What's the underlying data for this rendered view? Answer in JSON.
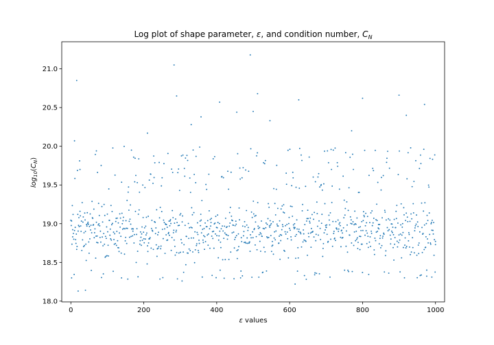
{
  "chart_data": {
    "type": "scatter",
    "title": "Log plot of shape parameter, ε, and condition number, C_N",
    "title_parts": {
      "prefix": "Log plot of shape parameter, ",
      "epsilon": "ε",
      "middle": ", and condition number, ",
      "cn_main": "C",
      "cn_sub": "N"
    },
    "xlabel": "ε values",
    "xlabel_parts": {
      "symbol": "ε",
      "rest": " values"
    },
    "ylabel": "log10(C_N)",
    "ylabel_parts": {
      "log": "log",
      "log_sub": "10",
      "open": "(",
      "cn_main": "C",
      "cn_sub": "N",
      "close": ")"
    },
    "xlim": [
      -25,
      1025
    ],
    "ylim": [
      17.99,
      21.35
    ],
    "xticks": [
      0,
      200,
      400,
      600,
      800,
      1000
    ],
    "xtick_labels": [
      "0",
      "200",
      "400",
      "600",
      "800",
      "1000"
    ],
    "yticks": [
      18.0,
      18.5,
      19.0,
      19.5,
      20.0,
      20.5,
      21.0
    ],
    "ytick_labels": [
      "18.0",
      "18.5",
      "19.0",
      "19.5",
      "20.0",
      "20.5",
      "21.0"
    ],
    "grid": false,
    "legend": "none",
    "marker_color": "#1f77b4",
    "notable_points": [
      {
        "x": 2,
        "y": 18.3
      },
      {
        "x": 5,
        "y": 18.83
      },
      {
        "x": 10,
        "y": 20.07
      },
      {
        "x": 16,
        "y": 20.85
      },
      {
        "x": 20,
        "y": 18.13
      },
      {
        "x": 25,
        "y": 19.7
      },
      {
        "x": 40,
        "y": 18.14
      },
      {
        "x": 70,
        "y": 19.94
      },
      {
        "x": 139,
        "y": 18.3
      },
      {
        "x": 210,
        "y": 20.17
      },
      {
        "x": 283,
        "y": 21.05
      },
      {
        "x": 290,
        "y": 20.65
      },
      {
        "x": 305,
        "y": 18.26
      },
      {
        "x": 330,
        "y": 20.28
      },
      {
        "x": 357,
        "y": 20.38
      },
      {
        "x": 408,
        "y": 20.57
      },
      {
        "x": 455,
        "y": 20.44
      },
      {
        "x": 492,
        "y": 21.18
      },
      {
        "x": 500,
        "y": 20.45
      },
      {
        "x": 512,
        "y": 20.68
      },
      {
        "x": 546,
        "y": 20.33
      },
      {
        "x": 615,
        "y": 18.22
      },
      {
        "x": 625,
        "y": 20.6
      },
      {
        "x": 770,
        "y": 20.2
      },
      {
        "x": 800,
        "y": 20.62
      },
      {
        "x": 900,
        "y": 20.66
      },
      {
        "x": 920,
        "y": 20.4
      },
      {
        "x": 970,
        "y": 20.54
      },
      {
        "x": 976,
        "y": 18.4
      },
      {
        "x": 990,
        "y": 18.31
      },
      {
        "x": 1000,
        "y": 18.73
      }
    ],
    "cloud": {
      "n": 1000,
      "x_range": [
        0,
        1000
      ],
      "typical_range": [
        18.4,
        19.4
      ],
      "upper_tail_to": 20.0
    }
  }
}
